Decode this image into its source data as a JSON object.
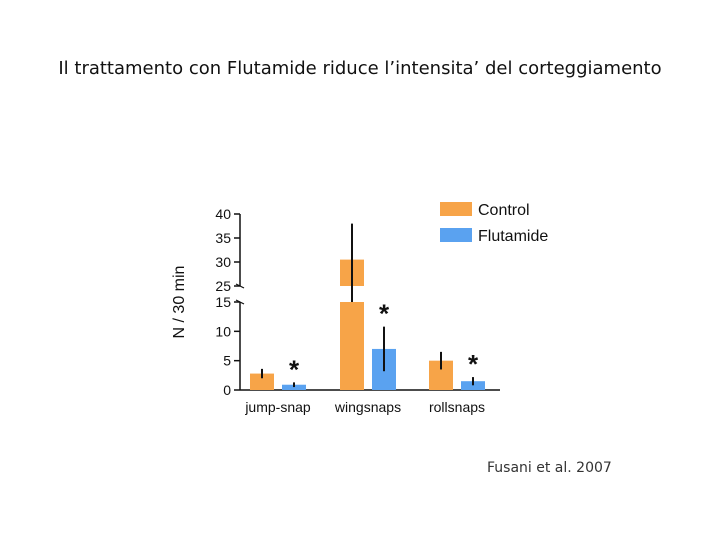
{
  "slide": {
    "title": "Il trattamento con Flutamide riduce l’intensita’ del corteggiamento",
    "citation": "Fusani et al. 2007"
  },
  "colors": {
    "control": "#f7a448",
    "flutamide": "#5aa2f0",
    "axis": "#111111"
  },
  "chart_data": {
    "type": "bar",
    "title": "",
    "xlabel": "",
    "ylabel": "N / 30 min",
    "categories": [
      "jump-snap",
      "wingsnaps",
      "rollsnaps"
    ],
    "series": [
      {
        "name": "Control",
        "values": [
          2.8,
          30.5,
          5.0
        ],
        "errors": [
          0.8,
          7.5,
          1.5
        ]
      },
      {
        "name": "Flutamide",
        "values": [
          0.9,
          7.0,
          1.5
        ],
        "errors": [
          0.4,
          3.8,
          0.7
        ]
      }
    ],
    "axis_break": {
      "lower": [
        0,
        15
      ],
      "upper": [
        25,
        40
      ]
    },
    "y_ticks_lower": [
      "0",
      "5",
      "10",
      "15"
    ],
    "y_ticks_upper": [
      "25",
      "30",
      "35",
      "40"
    ],
    "significance": [
      "*",
      "*",
      "*"
    ],
    "legend": "top-right",
    "grid": false
  }
}
